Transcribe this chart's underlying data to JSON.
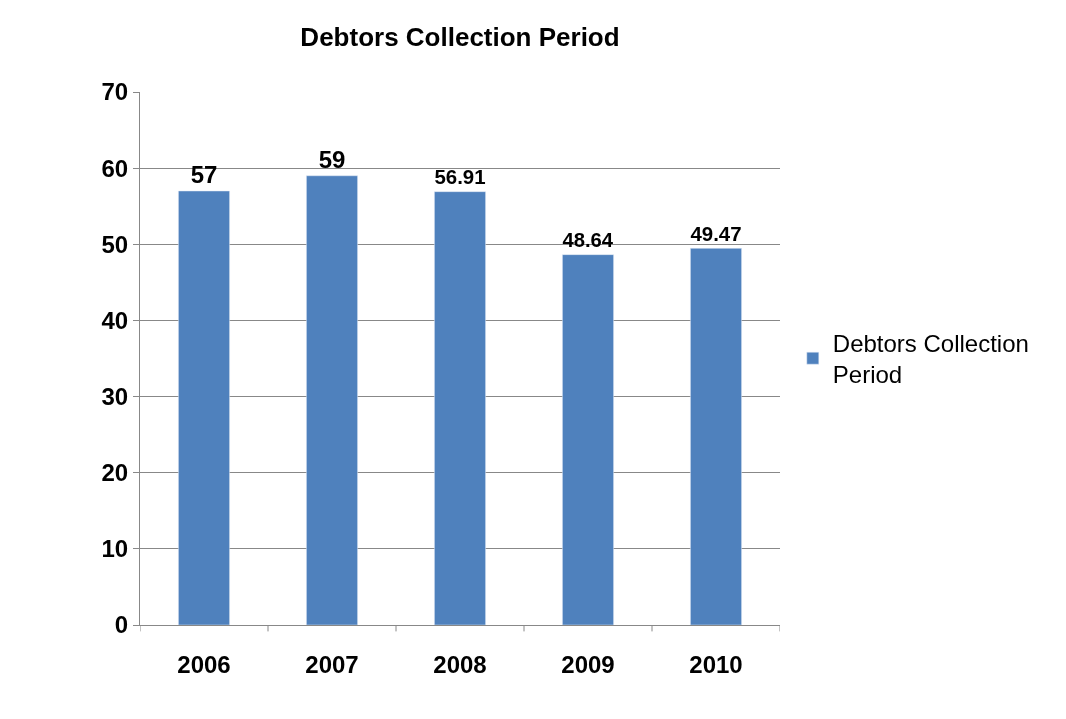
{
  "chart_data": {
    "type": "bar",
    "title": "Debtors Collection Period",
    "categories": [
      "2006",
      "2007",
      "2008",
      "2009",
      "2010"
    ],
    "series": [
      {
        "name": "Debtors Collection Period",
        "color": "#4f81bd",
        "values": [
          57,
          59,
          56.91,
          48.64,
          49.47
        ]
      }
    ],
    "ylim": [
      0,
      70
    ],
    "yticks": [
      0,
      10,
      20,
      30,
      40,
      50,
      60,
      70
    ],
    "grid": "y",
    "legend": "right",
    "data_labels": true
  }
}
